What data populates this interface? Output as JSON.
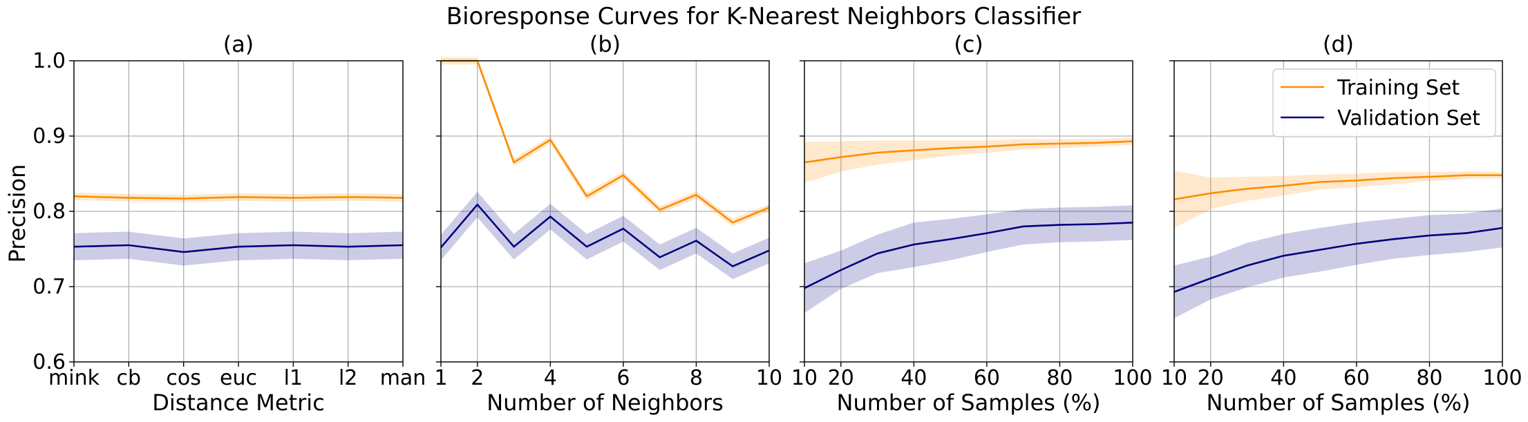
{
  "figure_title": "Bioresponse Curves for K-Nearest Neighbors Classifier",
  "shared_ylabel": "Precision",
  "colors": {
    "training": "#FF8C00",
    "validation": "#000080",
    "grid": "#b0b0b0"
  },
  "legend": {
    "placement": "upper-right of panel (d)",
    "entries": [
      "Training Set",
      "Validation Set"
    ]
  },
  "chart_data": [
    {
      "panel": "(a)",
      "type": "line",
      "xlabel": "Distance Metric",
      "ylabel": "Precision",
      "categories": [
        "mink",
        "cb",
        "cos",
        "euc",
        "l1",
        "l2",
        "man"
      ],
      "ylim": [
        0.6,
        1.0
      ],
      "yticks": [
        "0.6",
        "0.7",
        "0.8",
        "0.9",
        "1.0"
      ],
      "grid": true,
      "series": [
        {
          "name": "Training Set",
          "values": [
            0.82,
            0.818,
            0.817,
            0.819,
            0.818,
            0.819,
            0.818
          ],
          "band": 0.005
        },
        {
          "name": "Validation Set",
          "values": [
            0.753,
            0.755,
            0.746,
            0.753,
            0.755,
            0.753,
            0.755
          ],
          "band": 0.018
        }
      ]
    },
    {
      "panel": "(b)",
      "type": "line",
      "xlabel": "Number of Neighbors",
      "x": [
        1,
        2,
        3,
        4,
        5,
        6,
        7,
        8,
        9,
        10
      ],
      "xlim": [
        1,
        10
      ],
      "xticks": [
        "1",
        "2",
        "4",
        "6",
        "8",
        "10"
      ],
      "ylim": [
        0.6,
        1.0
      ],
      "grid": true,
      "series": [
        {
          "name": "Training Set",
          "values": [
            1.0,
            1.0,
            0.865,
            0.895,
            0.82,
            0.848,
            0.802,
            0.822,
            0.785,
            0.805
          ],
          "band": 0.005
        },
        {
          "name": "Validation Set",
          "values": [
            0.752,
            0.809,
            0.753,
            0.793,
            0.753,
            0.777,
            0.739,
            0.761,
            0.727,
            0.748
          ],
          "band": 0.017
        }
      ]
    },
    {
      "panel": "(c)",
      "type": "line",
      "xlabel": "Number of Samples (%)",
      "x": [
        10,
        20,
        30,
        40,
        50,
        60,
        70,
        80,
        90,
        100
      ],
      "xlim": [
        10,
        100
      ],
      "xticks": [
        "10",
        "20",
        "40",
        "60",
        "80",
        "100"
      ],
      "ylim": [
        0.6,
        1.0
      ],
      "grid": true,
      "series": [
        {
          "name": "Training Set",
          "values": [
            0.865,
            0.872,
            0.878,
            0.881,
            0.884,
            0.886,
            0.889,
            0.89,
            0.891,
            0.893
          ],
          "band_lower": [
            0.838,
            0.853,
            0.862,
            0.868,
            0.874,
            0.878,
            0.882,
            0.884,
            0.886,
            0.888
          ],
          "band_upper": [
            0.892,
            0.893,
            0.894,
            0.894,
            0.894,
            0.894,
            0.896,
            0.896,
            0.896,
            0.898
          ]
        },
        {
          "name": "Validation Set",
          "values": [
            0.698,
            0.722,
            0.744,
            0.756,
            0.763,
            0.771,
            0.78,
            0.782,
            0.783,
            0.785
          ],
          "band_lower": [
            0.665,
            0.697,
            0.718,
            0.726,
            0.735,
            0.746,
            0.756,
            0.759,
            0.76,
            0.762
          ],
          "band_upper": [
            0.731,
            0.748,
            0.769,
            0.785,
            0.79,
            0.796,
            0.803,
            0.805,
            0.806,
            0.808
          ]
        }
      ]
    },
    {
      "panel": "(d)",
      "type": "line",
      "xlabel": "Number of Samples (%)",
      "x": [
        10,
        20,
        30,
        40,
        50,
        60,
        70,
        80,
        90,
        100
      ],
      "xlim": [
        10,
        100
      ],
      "xticks": [
        "10",
        "20",
        "40",
        "60",
        "80",
        "100"
      ],
      "ylim": [
        0.6,
        1.0
      ],
      "grid": true,
      "series": [
        {
          "name": "Training Set",
          "values": [
            0.816,
            0.824,
            0.83,
            0.834,
            0.839,
            0.841,
            0.844,
            0.846,
            0.848,
            0.848
          ],
          "band_lower": [
            0.778,
            0.803,
            0.814,
            0.821,
            0.829,
            0.832,
            0.836,
            0.84,
            0.843,
            0.844
          ],
          "band_upper": [
            0.854,
            0.845,
            0.846,
            0.847,
            0.849,
            0.85,
            0.852,
            0.852,
            0.853,
            0.852
          ]
        },
        {
          "name": "Validation Set",
          "values": [
            0.693,
            0.711,
            0.728,
            0.741,
            0.749,
            0.757,
            0.763,
            0.768,
            0.771,
            0.778
          ],
          "band_lower": [
            0.658,
            0.683,
            0.699,
            0.712,
            0.72,
            0.729,
            0.737,
            0.742,
            0.746,
            0.752
          ],
          "band_upper": [
            0.728,
            0.74,
            0.758,
            0.77,
            0.778,
            0.785,
            0.79,
            0.795,
            0.797,
            0.804
          ]
        }
      ]
    }
  ]
}
